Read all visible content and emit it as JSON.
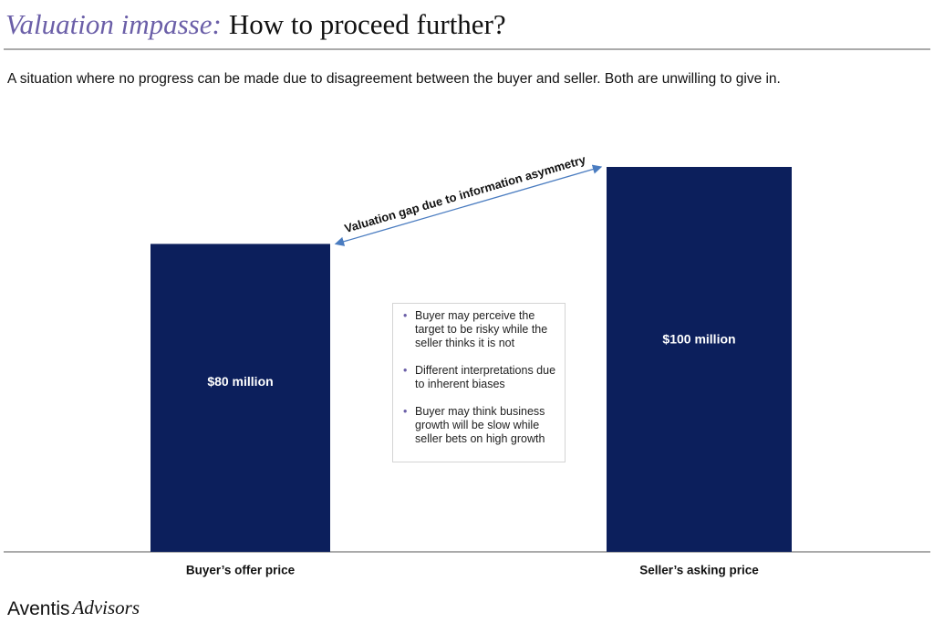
{
  "header": {
    "title_accent": "Valuation impasse:",
    "title": "How to proceed further?",
    "subtitle": "A situation where no progress can be made due to disagreement between the buyer and seller. Both are unwilling to give in."
  },
  "chart_data": {
    "type": "bar",
    "categories": [
      "Buyer’s offer price",
      "Seller’s asking price"
    ],
    "values": [
      80,
      100
    ],
    "value_labels": [
      "$80 million",
      "$100 million"
    ],
    "color": "#0c1f5c",
    "annotation": "Valuation gap due to information asymmetry",
    "notes": [
      "Buyer may perceive the target to be risky while the seller thinks it is not",
      "Different interpretations due to inherent biases",
      "Buyer may think business growth will be slow while seller bets on high growth"
    ]
  },
  "footer": {
    "brand": "Aventis",
    "brand_accent": "Advisors"
  }
}
